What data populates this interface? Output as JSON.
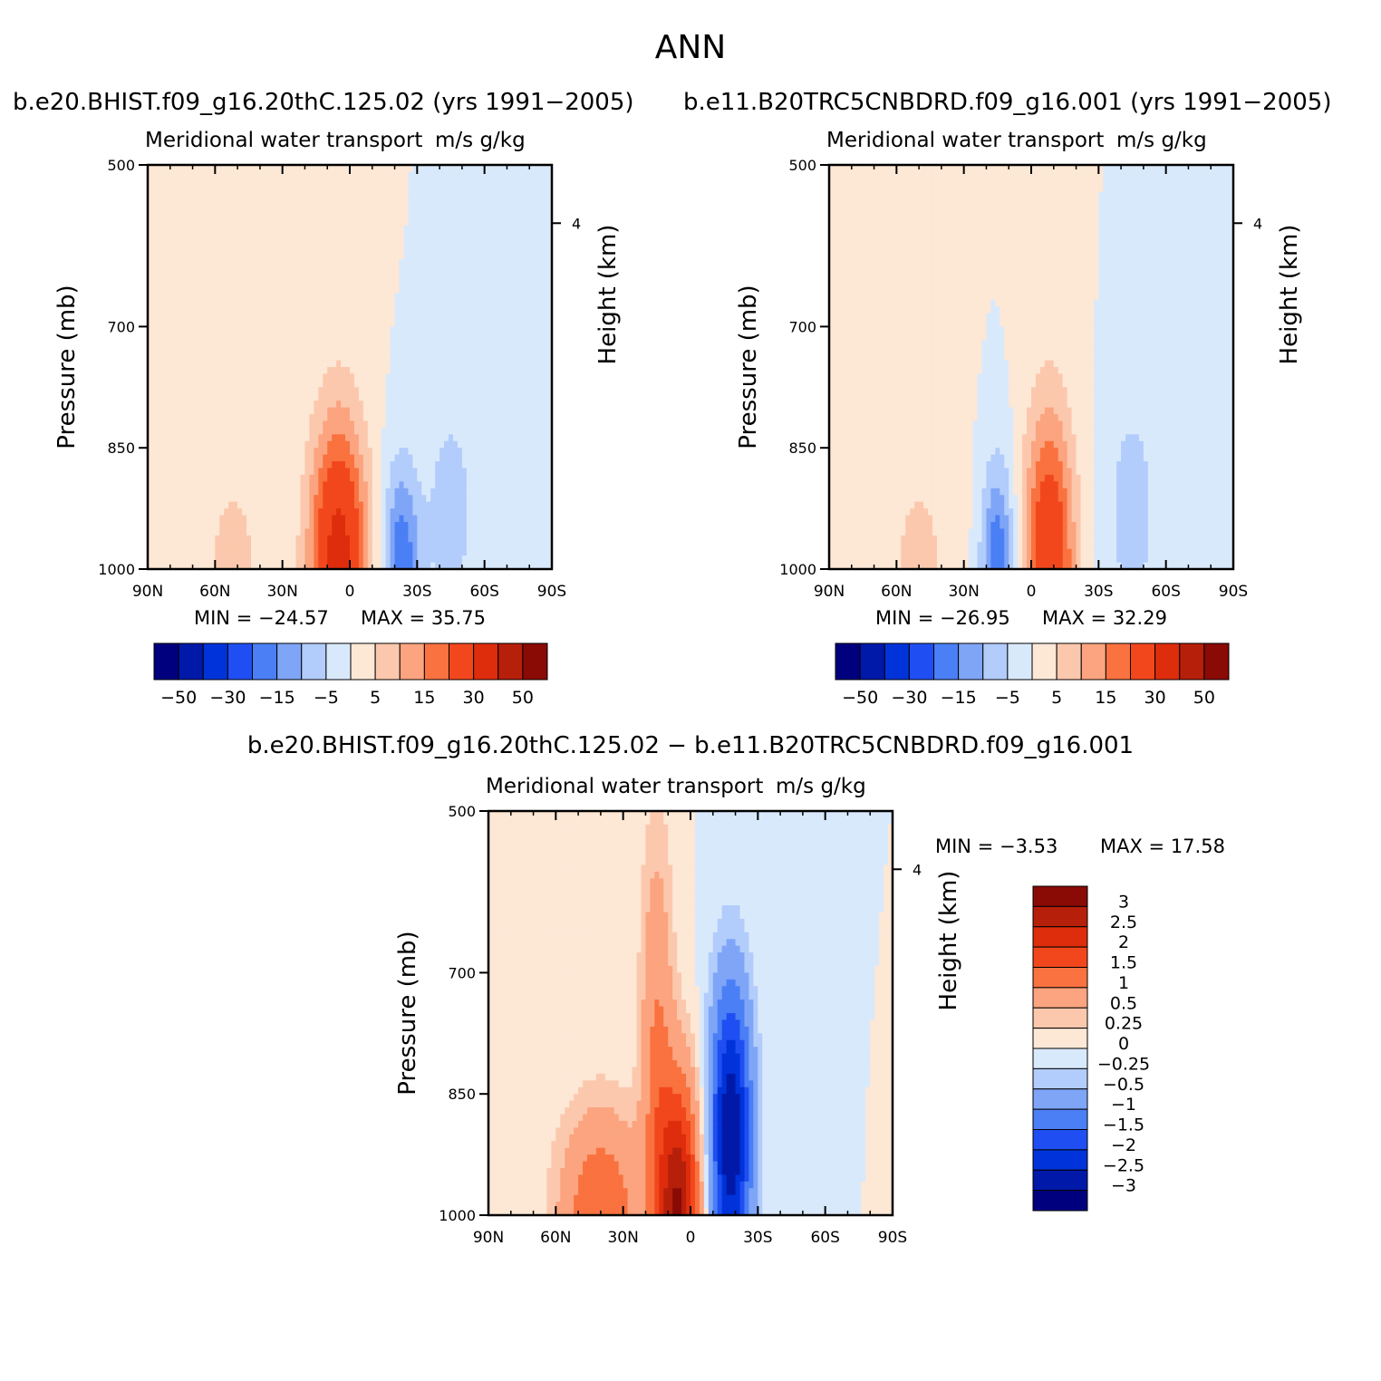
{
  "figure": {
    "title": "ANN",
    "diff_title": "b.e20.BHIST.f09_g16.20thC.125.02 − b.e11.B20TRC5CNBDRD.f09_g16.001"
  },
  "panels": [
    {
      "title": "b.e20.BHIST.f09_g16.20thC.125.02 (yrs 1991−2005)",
      "left_label": "Meridional water transport",
      "right_label": "m/s g/kg",
      "min_label": "MIN = −24.57",
      "max_label": "MAX =   35.75"
    },
    {
      "title": "b.e11.B20TRC5CNBDRD.f09_g16.001 (yrs 1991−2005)",
      "left_label": "Meridional water transport",
      "right_label": "m/s g/kg",
      "min_label": "MIN = −26.95",
      "max_label": "MAX =   32.29"
    },
    {
      "title": "",
      "left_label": "Meridional water transport",
      "right_label": "m/s g/kg",
      "min_label": "MIN =  −3.53",
      "max_label": "MAX =   17.58"
    }
  ],
  "colors": {
    "fill": [
      "#00007f",
      "#0019a8",
      "#0033d9",
      "#1f4ff2",
      "#4a7ff5",
      "#7fa5f7",
      "#b2ccfb",
      "#d9e9fc",
      "#fde7d5",
      "#fcc8ad",
      "#fba47f",
      "#f9723f",
      "#f2471c",
      "#de2d0c",
      "#b61f0a",
      "#8a0a06"
    ]
  },
  "chart_data": [
    {
      "type": "contour",
      "title": "b.e20.BHIST.f09_g16.20thC.125.02 (yrs 1991−2005)",
      "variable": "Meridional water transport",
      "units": "m/s g/kg",
      "xlabel": "",
      "ylabel": "Pressure (mb)",
      "ylabel_right": "Height (km)",
      "x_ticks": [
        "90N",
        "60N",
        "30N",
        "0",
        "30S",
        "60S",
        "90S"
      ],
      "y_ticks": [
        500,
        700,
        850,
        1000
      ],
      "y_right_ticks": [
        4
      ],
      "xlim": [
        90,
        -90
      ],
      "ylim": [
        1000,
        500
      ],
      "min": -24.57,
      "max": 35.75,
      "colorbar_labels": [
        "−50",
        "−30",
        "−15",
        "−5",
        "5",
        "15",
        "30",
        "50"
      ],
      "features": [
        {
          "center_lat": 5,
          "center_p": 1000,
          "half_width_lat": 14,
          "top_p": 800,
          "level": 35
        },
        {
          "center_lat": -23,
          "center_p": 1000,
          "half_width_lat": 9,
          "top_p": 860,
          "level": -20
        },
        {
          "center_lat": -45,
          "center_p": 930,
          "half_width_lat": 12,
          "top_p": 780,
          "level": -8
        },
        {
          "center_lat": 52,
          "center_p": 1000,
          "half_width_lat": 20,
          "top_p": 780,
          "level": 6
        }
      ]
    },
    {
      "type": "contour",
      "title": "b.e11.B20TRC5CNBDRD.f09_g16.001 (yrs 1991−2005)",
      "variable": "Meridional water transport",
      "units": "m/s g/kg",
      "xlabel": "",
      "ylabel": "Pressure (mb)",
      "ylabel_right": "Height (km)",
      "x_ticks": [
        "90N",
        "60N",
        "30N",
        "0",
        "30S",
        "60S",
        "90S"
      ],
      "y_ticks": [
        500,
        700,
        850,
        1000
      ],
      "y_right_ticks": [
        4
      ],
      "xlim": [
        90,
        -90
      ],
      "ylim": [
        1000,
        500
      ],
      "min": -26.95,
      "max": 32.29,
      "colorbar_labels": [
        "−50",
        "−30",
        "−15",
        "−5",
        "5",
        "15",
        "30",
        "50"
      ],
      "features": [
        {
          "center_lat": -8,
          "center_p": 1000,
          "half_width_lat": 12,
          "top_p": 790,
          "level": 30
        },
        {
          "center_lat": 15,
          "center_p": 1000,
          "half_width_lat": 8,
          "top_p": 860,
          "level": -20
        },
        {
          "center_lat": -45,
          "center_p": 930,
          "half_width_lat": 12,
          "top_p": 770,
          "level": -8
        },
        {
          "center_lat": 50,
          "center_p": 1000,
          "half_width_lat": 20,
          "top_p": 780,
          "level": 6
        }
      ]
    },
    {
      "type": "contour",
      "title": "b.e20.BHIST.f09_g16.20thC.125.02 − b.e11.B20TRC5CNBDRD.f09_g16.001",
      "variable": "Meridional water transport",
      "units": "m/s g/kg",
      "xlabel": "",
      "ylabel": "Pressure (mb)",
      "ylabel_right": "Height (km)",
      "x_ticks": [
        "90N",
        "60N",
        "30N",
        "0",
        "30S",
        "60S",
        "90S"
      ],
      "y_ticks": [
        500,
        700,
        850,
        1000
      ],
      "y_right_ticks": [
        4
      ],
      "xlim": [
        90,
        -90
      ],
      "ylim": [
        1000,
        500
      ],
      "min": -3.53,
      "max": 17.58,
      "colorbar_labels": [
        "3",
        "2.5",
        "2",
        "1.5",
        "1",
        "0.5",
        "0.25",
        "0",
        "−0.25",
        "−0.5",
        "−1",
        "−1.5",
        "−2",
        "−2.5",
        "−3"
      ],
      "features": [
        {
          "center_lat": 5,
          "center_p": 1000,
          "half_width_lat": 10,
          "top_p": 820,
          "level": 3
        },
        {
          "center_lat": -18,
          "center_p": 900,
          "half_width_lat": 10,
          "top_p": 700,
          "level": -3
        },
        {
          "center_lat": 40,
          "center_p": 1000,
          "half_width_lat": 20,
          "top_p": 860,
          "level": 1.5
        },
        {
          "center_lat": 15,
          "center_p": 800,
          "half_width_lat": 8,
          "top_p": 500,
          "level": 1
        }
      ]
    }
  ]
}
